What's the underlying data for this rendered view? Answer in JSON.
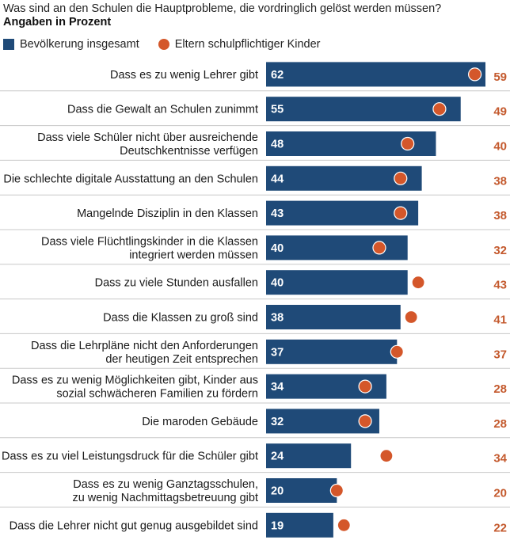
{
  "header": {
    "title": "Was sind an den Schulen die Hauptprobleme, die vordringlich gelöst werden müssen?",
    "subtitle": "Angaben in Prozent"
  },
  "legend": {
    "series_1": "Bevölkerung insgesamt",
    "series_2": "Eltern schulpflichtiger Kinder"
  },
  "colors": {
    "bar": "#1f4a78",
    "dot": "#d4572a",
    "dot_label": "#c45a2e",
    "separator": "#c8c8c8"
  },
  "chart_data": {
    "type": "bar",
    "orientation": "horizontal",
    "title": "Was sind an den Schulen die Hauptprobleme, die vordringlich gelöst werden müssen?",
    "subtitle": "Angaben in Prozent",
    "xlim": [
      0,
      62
    ],
    "categories": [
      [
        "Dass es zu wenig Lehrer gibt"
      ],
      [
        "Dass die Gewalt an Schulen zunimmt"
      ],
      [
        "Dass viele Schüler nicht über ausreichende",
        "Deutschkentnisse verfügen"
      ],
      [
        "Die schlechte digitale Ausstattung an den Schulen"
      ],
      [
        "Mangelnde Disziplin in den Klassen"
      ],
      [
        "Dass viele Flüchtlingskinder in die Klassen",
        "integriert werden müssen"
      ],
      [
        "Dass zu viele Stunden ausfallen"
      ],
      [
        "Dass die Klassen zu groß sind"
      ],
      [
        "Dass die Lehrpläne nicht den Anforderungen",
        "der heutigen Zeit entsprechen"
      ],
      [
        "Dass es zu wenig Möglichkeiten gibt, Kinder aus",
        "sozial schwächeren Familien zu fördern"
      ],
      [
        "Die maroden Gebäude"
      ],
      [
        "Dass es zu viel Leistungsdruck für die Schüler gibt"
      ],
      [
        "Dass es zu wenig Ganztagsschulen,",
        "zu wenig Nachmittagsbetreuung gibt"
      ],
      [
        "Dass die Lehrer nicht gut genug ausgebildet sind"
      ]
    ],
    "series": [
      {
        "name": "Bevölkerung insgesamt",
        "marker": "bar",
        "values": [
          62,
          55,
          48,
          44,
          43,
          40,
          40,
          38,
          37,
          34,
          32,
          24,
          20,
          19
        ]
      },
      {
        "name": "Eltern schulpflichtiger Kinder",
        "marker": "dot",
        "values": [
          59,
          49,
          40,
          38,
          38,
          32,
          43,
          41,
          37,
          28,
          28,
          34,
          20,
          22
        ]
      }
    ]
  }
}
